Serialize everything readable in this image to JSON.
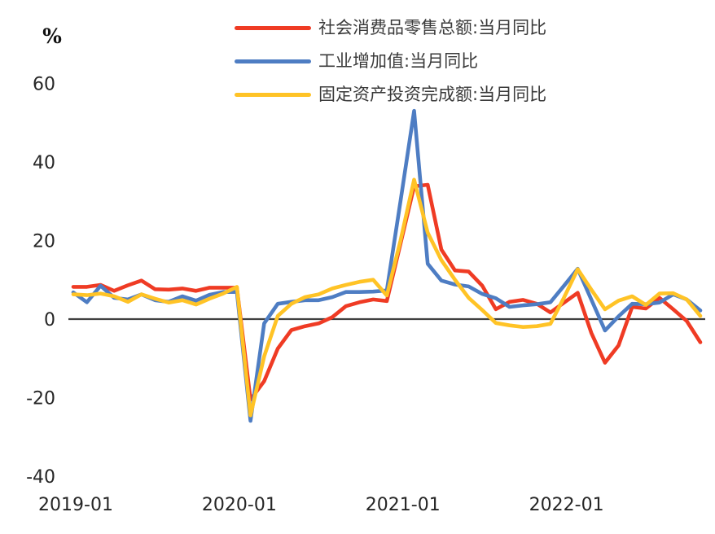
{
  "chart_data": {
    "type": "line",
    "title": "",
    "xlabel": "",
    "ylabel": "%",
    "unit_label": "%",
    "ylim": [
      -40,
      60
    ],
    "y_ticks": [
      60,
      40,
      20,
      0,
      -20,
      -40
    ],
    "grid": false,
    "legend_position": "top-center",
    "axis_color": "#404040",
    "x_tick_labels": [
      "2019-01",
      "2020-01",
      "2021-01",
      "2022-01"
    ],
    "x_tick_month_indices": [
      0,
      12,
      24,
      36
    ],
    "x": [
      "2019-01",
      "2019-02",
      "2019-03",
      "2019-04",
      "2019-05",
      "2019-06",
      "2019-07",
      "2019-08",
      "2019-09",
      "2019-10",
      "2019-11",
      "2019-12",
      "2020-01",
      "2020-02",
      "2020-03",
      "2020-04",
      "2020-05",
      "2020-06",
      "2020-07",
      "2020-08",
      "2020-09",
      "2020-10",
      "2020-11",
      "2020-12",
      "2021-01",
      "2021-02",
      "2021-03",
      "2021-04",
      "2021-05",
      "2021-06",
      "2021-07",
      "2021-08",
      "2021-09",
      "2021-10",
      "2021-11",
      "2021-12",
      "2022-01",
      "2022-02",
      "2022-03",
      "2022-04",
      "2022-05",
      "2022-06",
      "2022-07",
      "2022-08",
      "2022-09",
      "2022-10",
      "2022-11"
    ],
    "series": [
      {
        "id": "retail-sales",
        "name": "社会消费品零售总额:当月同比",
        "color": "#EF3B24",
        "values": [
          8.2,
          8.2,
          8.7,
          7.2,
          8.6,
          9.8,
          7.6,
          7.5,
          7.8,
          7.2,
          8.0,
          8.0,
          8.0,
          -20.5,
          -15.8,
          -7.5,
          -2.8,
          -1.8,
          -1.1,
          0.5,
          3.3,
          4.3,
          5.0,
          4.6,
          19.2,
          33.8,
          34.2,
          17.7,
          12.4,
          12.1,
          8.5,
          2.5,
          4.4,
          4.9,
          3.9,
          1.7,
          4.2,
          6.7,
          -3.5,
          -11.1,
          -6.7,
          3.1,
          2.7,
          5.4,
          2.5,
          -0.5,
          -5.9
        ]
      },
      {
        "id": "industrial-value-added",
        "name": "工业增加值:当月同比",
        "color": "#4E7DC3",
        "values": [
          6.8,
          4.3,
          8.5,
          5.4,
          5.0,
          6.3,
          4.8,
          4.4,
          5.8,
          4.7,
          6.2,
          6.9,
          6.9,
          -25.9,
          -1.1,
          3.9,
          4.4,
          4.8,
          4.8,
          5.6,
          6.9,
          6.9,
          7.0,
          7.3,
          30.0,
          53.0,
          14.1,
          9.8,
          8.8,
          8.3,
          6.4,
          5.3,
          3.1,
          3.5,
          3.8,
          4.3,
          8.5,
          12.8,
          5.0,
          -2.9,
          0.7,
          3.9,
          3.8,
          4.2,
          6.3,
          5.0,
          2.2
        ]
      },
      {
        "id": "fixed-asset-investment",
        "name": "固定资产投资完成额:当月同比",
        "color": "#FFC326",
        "values": [
          6.3,
          6.1,
          6.5,
          5.8,
          4.4,
          6.3,
          5.2,
          4.2,
          4.8,
          3.7,
          5.2,
          6.5,
          8.2,
          -24.5,
          -9.5,
          0.8,
          3.9,
          5.6,
          6.3,
          7.8,
          8.7,
          9.5,
          10.0,
          6.0,
          20.0,
          35.5,
          22.0,
          15.0,
          10.0,
          5.4,
          2.3,
          -1.0,
          -1.6,
          -2.0,
          -1.8,
          -1.2,
          5.5,
          12.7,
          7.5,
          2.5,
          4.7,
          5.8,
          3.6,
          6.5,
          6.6,
          5.0,
          0.8
        ]
      }
    ]
  }
}
